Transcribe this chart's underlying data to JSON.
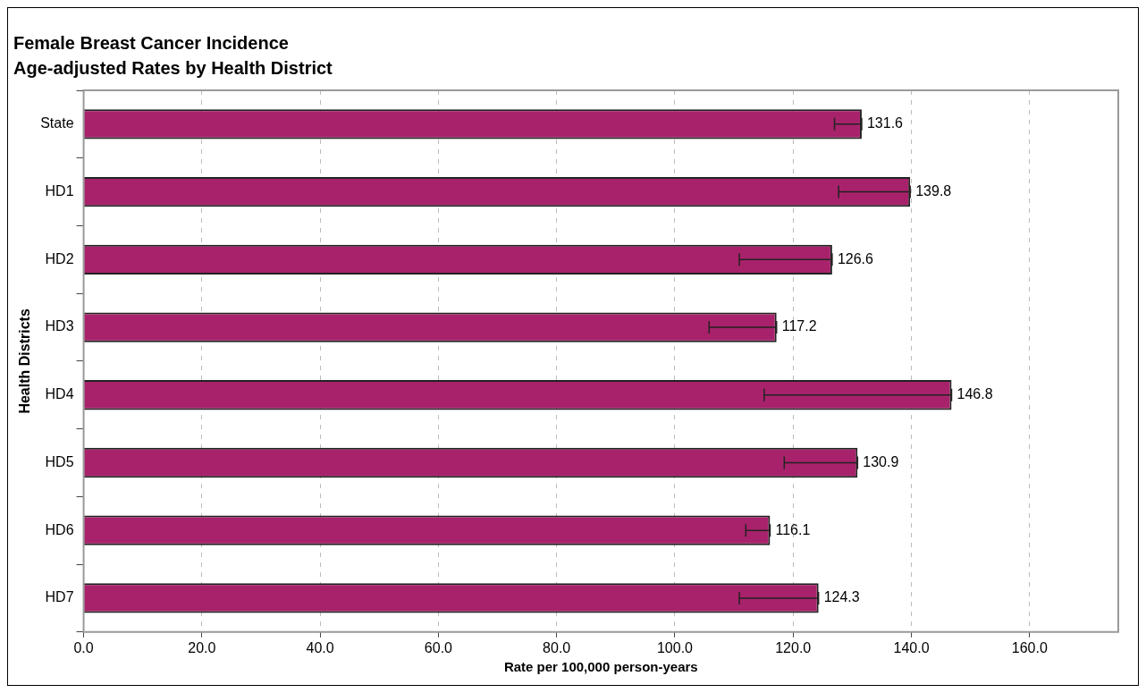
{
  "chart_data": {
    "type": "bar",
    "orientation": "horizontal",
    "title": "Female Breast Cancer Incidence",
    "subtitle": "Age-adjusted Rates by Health District",
    "xlabel": "Rate per 100,000 person-years",
    "ylabel": "Health Districts",
    "categories": [
      "State",
      "HD1",
      "HD2",
      "HD3",
      "HD4",
      "HD5",
      "HD6",
      "HD7"
    ],
    "values": [
      131.6,
      139.8,
      126.6,
      117.2,
      146.8,
      130.9,
      116.1,
      124.3
    ],
    "errors": [
      [
        127.0,
        131.6
      ],
      [
        127.7,
        139.8
      ],
      [
        110.9,
        126.6
      ],
      [
        105.8,
        117.2
      ],
      [
        115.1,
        146.8
      ],
      [
        118.5,
        130.9
      ],
      [
        112.0,
        116.1
      ],
      [
        110.9,
        124.3
      ]
    ],
    "color": "#a8226b",
    "xlim": [
      0,
      175
    ],
    "xticks": [
      {
        "value": 0,
        "label": "0.0"
      },
      {
        "value": 20,
        "label": "20.0"
      },
      {
        "value": 40,
        "label": "40.0"
      },
      {
        "value": 60,
        "label": "60.0"
      },
      {
        "value": 80,
        "label": "80.0"
      },
      {
        "value": 100,
        "label": "100.0"
      },
      {
        "value": 120,
        "label": "120.0"
      },
      {
        "value": 140,
        "label": "140.0"
      },
      {
        "value": 160,
        "label": "160.0"
      }
    ],
    "grid": "x",
    "data_labels": true,
    "legend": false
  }
}
